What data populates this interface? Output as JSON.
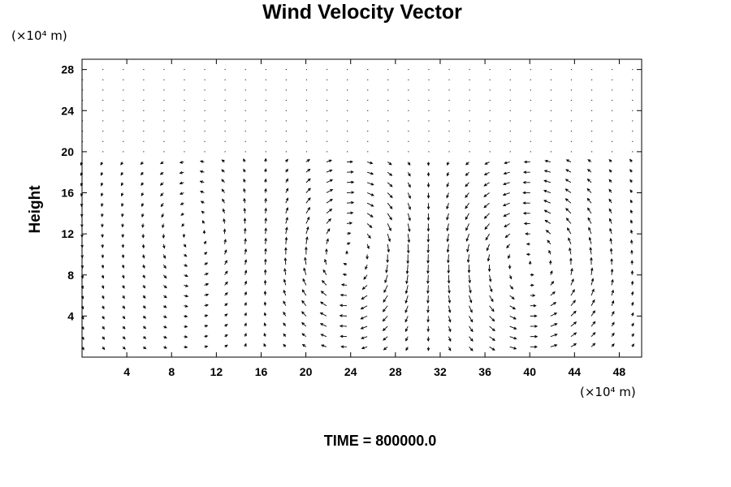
{
  "chart_data": {
    "type": "vector",
    "title": "Wind Velocity Vector",
    "xlabel": "",
    "ylabel": "Height",
    "x_unit": "(×10⁴ m)",
    "y_unit": "(×10⁴ m)",
    "xlim": [
      0,
      50
    ],
    "ylim": [
      0,
      29
    ],
    "x_ticks": [
      4,
      8,
      12,
      16,
      20,
      24,
      28,
      32,
      36,
      40,
      44,
      48
    ],
    "y_ticks": [
      4,
      8,
      12,
      16,
      20,
      24,
      28
    ],
    "grid": false,
    "time_label": "TIME = 800000.0",
    "vector_grid": {
      "x_start": 0.0,
      "x_step": 1.82,
      "x_count": 28,
      "y_start": 1.0,
      "y_step": 1.0,
      "y_count": 28
    },
    "field_cells": [
      {
        "name": "cell-1",
        "xc": 10.0,
        "yc": 12.0,
        "rx": 5.0,
        "ry": 8.0,
        "sense": 1,
        "strength": 0.6
      },
      {
        "name": "cell-2",
        "xc": 24.0,
        "yc": 10.0,
        "rx": 6.0,
        "ry": 9.0,
        "sense": -1,
        "strength": 1.0
      },
      {
        "name": "cell-3",
        "xc": 40.0,
        "yc": 9.0,
        "rx": 7.5,
        "ry": 10.0,
        "sense": 1,
        "strength": 1.0
      }
    ],
    "field_top": 19.5
  }
}
